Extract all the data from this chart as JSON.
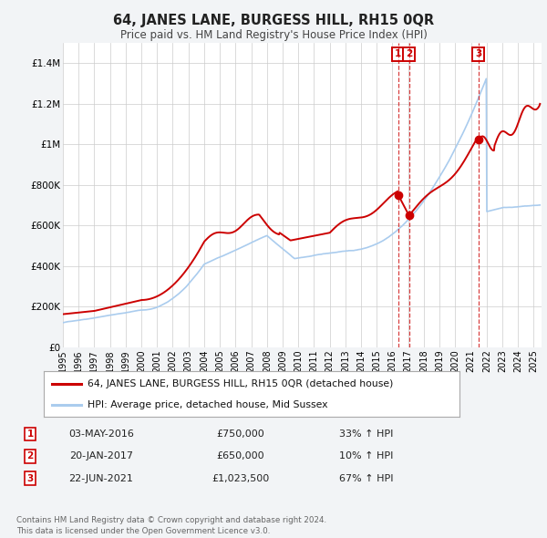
{
  "title": "64, JANES LANE, BURGESS HILL, RH15 0QR",
  "subtitle": "Price paid vs. HM Land Registry's House Price Index (HPI)",
  "background_color": "#f2f4f6",
  "plot_bg_color": "#ffffff",
  "red_line_color": "#cc0000",
  "blue_line_color": "#aaccee",
  "grid_color": "#cccccc",
  "ylim": [
    0,
    1500000
  ],
  "yticks": [
    0,
    200000,
    400000,
    600000,
    800000,
    1000000,
    1200000,
    1400000
  ],
  "ytick_labels": [
    "£0",
    "£200K",
    "£400K",
    "£600K",
    "£800K",
    "£1M",
    "£1.2M",
    "£1.4M"
  ],
  "xlim_start": 1995,
  "xlim_end": 2025.5,
  "xticks": [
    1995,
    1996,
    1997,
    1998,
    1999,
    2000,
    2001,
    2002,
    2003,
    2004,
    2005,
    2006,
    2007,
    2008,
    2009,
    2010,
    2011,
    2012,
    2013,
    2014,
    2015,
    2016,
    2017,
    2018,
    2019,
    2020,
    2021,
    2022,
    2023,
    2024,
    2025
  ],
  "legend_label_red": "64, JANES LANE, BURGESS HILL, RH15 0QR (detached house)",
  "legend_label_blue": "HPI: Average price, detached house, Mid Sussex",
  "transaction1_x": 2016.37,
  "transaction1_y": 750000,
  "transaction2_x": 2017.05,
  "transaction2_y": 650000,
  "transaction3_x": 2021.47,
  "transaction3_y": 1023500,
  "table_rows": [
    {
      "num": "1",
      "date": "03-MAY-2016",
      "price": "£750,000",
      "hpi": "33% ↑ HPI"
    },
    {
      "num": "2",
      "date": "20-JAN-2017",
      "price": "£650,000",
      "hpi": "10% ↑ HPI"
    },
    {
      "num": "3",
      "date": "22-JUN-2021",
      "price": "£1,023,500",
      "hpi": "67% ↑ HPI"
    }
  ],
  "footer": "Contains HM Land Registry data © Crown copyright and database right 2024.\nThis data is licensed under the Open Government Licence v3.0."
}
